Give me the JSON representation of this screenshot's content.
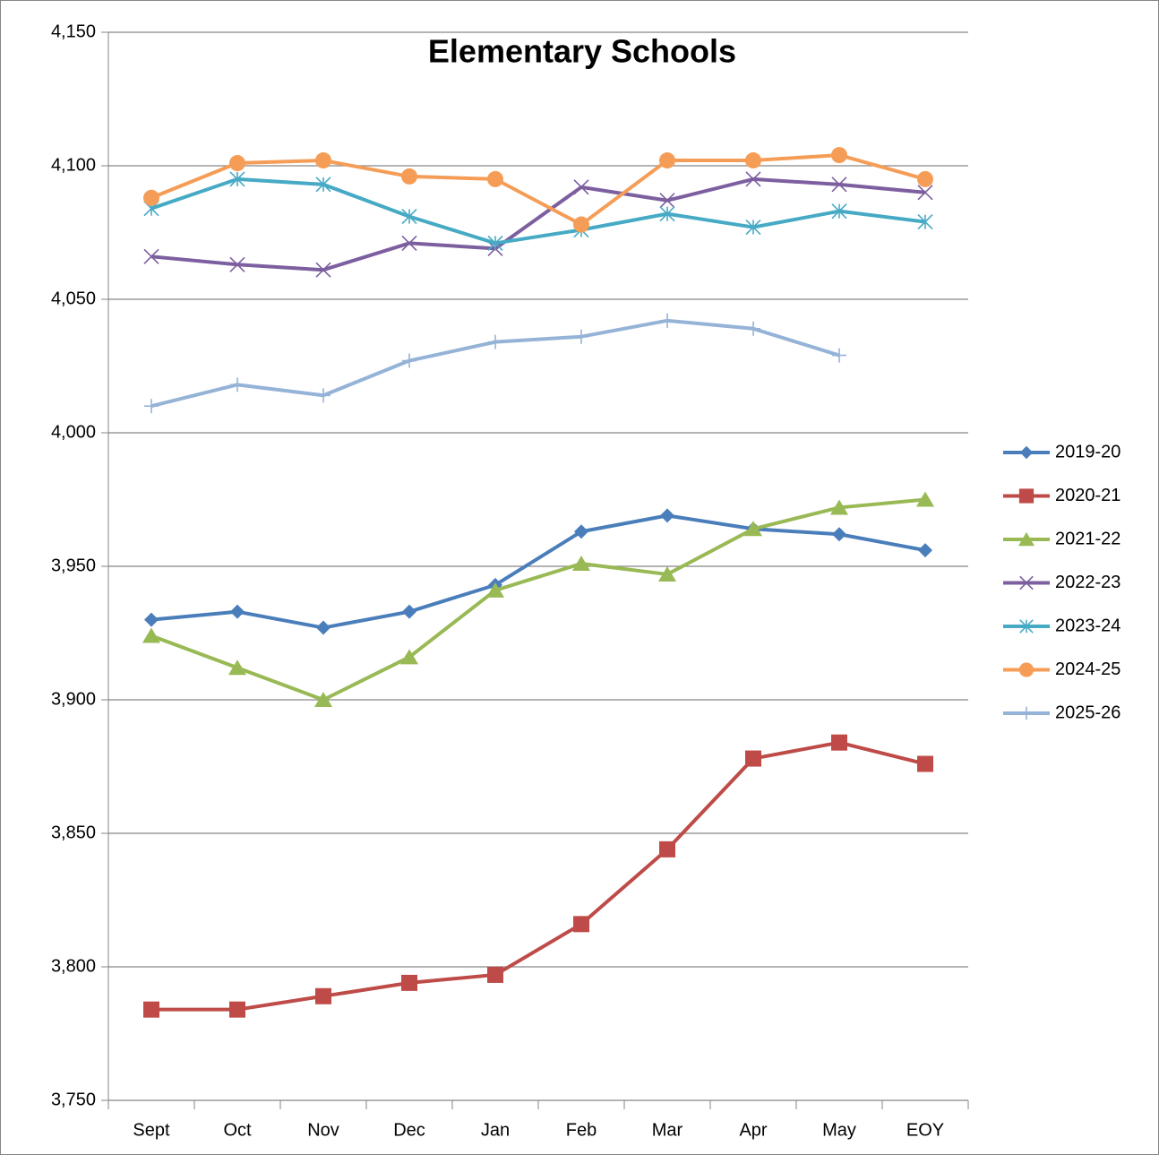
{
  "chart_data": {
    "type": "line",
    "title": "Elementary Schools",
    "categories": [
      "Sept",
      "Oct",
      "Nov",
      "Dec",
      "Jan",
      "Feb",
      "Mar",
      "Apr",
      "May",
      "EOY"
    ],
    "ylim": [
      3750,
      4150
    ],
    "yticks": [
      {
        "value": 3750,
        "label": "3,750"
      },
      {
        "value": 3800,
        "label": "3,800"
      },
      {
        "value": 3850,
        "label": "3,850"
      },
      {
        "value": 3900,
        "label": "3,900"
      },
      {
        "value": 3950,
        "label": "3,950"
      },
      {
        "value": 4000,
        "label": "4,000"
      },
      {
        "value": 4050,
        "label": "4,050"
      },
      {
        "value": 4100,
        "label": "4,100"
      },
      {
        "value": 4150,
        "label": "4,150"
      }
    ],
    "grid": true,
    "legend": "right",
    "series": [
      {
        "name": "2019-20",
        "color": "#4a7ebb",
        "marker": "diamond",
        "values": [
          3930,
          3933,
          3927,
          3933,
          3943,
          3963,
          3969,
          3964,
          3962,
          3956
        ]
      },
      {
        "name": "2020-21",
        "color": "#be4b48",
        "marker": "square",
        "values": [
          3784,
          3784,
          3789,
          3794,
          3797,
          3816,
          3844,
          3878,
          3884,
          3876
        ]
      },
      {
        "name": "2021-22",
        "color": "#98b954",
        "marker": "triangle",
        "values": [
          3924,
          3912,
          3900,
          3916,
          3941,
          3951,
          3947,
          3964,
          3972,
          3975
        ]
      },
      {
        "name": "2022-23",
        "color": "#7d5fa0",
        "marker": "x",
        "values": [
          4066,
          4063,
          4061,
          4071,
          4069,
          4092,
          4087,
          4095,
          4093,
          4090
        ]
      },
      {
        "name": "2023-24",
        "color": "#46aac5",
        "marker": "star",
        "values": [
          4084,
          4095,
          4093,
          4081,
          4071,
          4076,
          4082,
          4077,
          4083,
          4079
        ]
      },
      {
        "name": "2024-25",
        "color": "#f59d56",
        "marker": "circle",
        "values": [
          4088,
          4101,
          4102,
          4096,
          4095,
          4078,
          4102,
          4102,
          4104,
          4095
        ]
      },
      {
        "name": "2025-26",
        "color": "#95b3d7",
        "marker": "plus",
        "values": [
          4010,
          4018,
          4014,
          4027,
          4034,
          4036,
          4042,
          4039,
          4029,
          null
        ]
      }
    ]
  }
}
